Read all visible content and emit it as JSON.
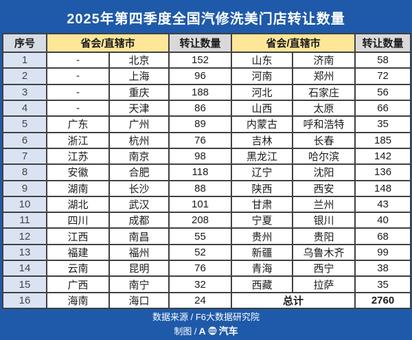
{
  "chart_data": {
    "type": "table",
    "title": "2025年第四季度全国汽修洗美门店转让数量",
    "columns": {
      "no": "序号",
      "region": "省会/直辖市",
      "qty": "转让数量"
    },
    "rows": [
      [
        "1",
        "-",
        "北京",
        "152",
        "山东",
        "济南",
        "58"
      ],
      [
        "2",
        "-",
        "上海",
        "96",
        "河南",
        "郑州",
        "72"
      ],
      [
        "3",
        "-",
        "重庆",
        "188",
        "河北",
        "石家庄",
        "56"
      ],
      [
        "4",
        "-",
        "天津",
        "86",
        "山西",
        "太原",
        "66"
      ],
      [
        "5",
        "广东",
        "广州",
        "89",
        "内蒙古",
        "呼和浩特",
        "35"
      ],
      [
        "6",
        "浙江",
        "杭州",
        "76",
        "吉林",
        "长春",
        "185"
      ],
      [
        "7",
        "江苏",
        "南京",
        "98",
        "黑龙江",
        "哈尔滨",
        "142"
      ],
      [
        "8",
        "安徽",
        "合肥",
        "118",
        "辽宁",
        "沈阳",
        "136"
      ],
      [
        "9",
        "湖南",
        "长沙",
        "88",
        "陕西",
        "西安",
        "148"
      ],
      [
        "10",
        "湖北",
        "武汉",
        "101",
        "甘肃",
        "兰州",
        "43"
      ],
      [
        "11",
        "四川",
        "成都",
        "208",
        "宁夏",
        "银川",
        "40"
      ],
      [
        "12",
        "江西",
        "南昌",
        "55",
        "贵州",
        "贵阳",
        "68"
      ],
      [
        "13",
        "福建",
        "福州",
        "52",
        "新疆",
        "乌鲁木齐",
        "99"
      ],
      [
        "14",
        "云南",
        "昆明",
        "76",
        "青海",
        "西宁",
        "38"
      ],
      [
        "15",
        "广西",
        "南宁",
        "32",
        "西藏",
        "拉萨",
        "35"
      ],
      [
        "16",
        "海南",
        "海口",
        "24"
      ]
    ],
    "total": {
      "label": "总计",
      "value": "2760"
    }
  },
  "footer": {
    "source": "数据来源 / F6大数据研究院",
    "credit_prefix": "制图 /",
    "logo_a": "A",
    "logo_suffix": "汽车"
  },
  "colors": {
    "blue": "#1e5aa9",
    "header_yellow": "#ffe699",
    "header_gray": "#d9d9d9",
    "no_header": "#d6dce4",
    "no_cell": "#dae3f3",
    "border": "#404040"
  }
}
